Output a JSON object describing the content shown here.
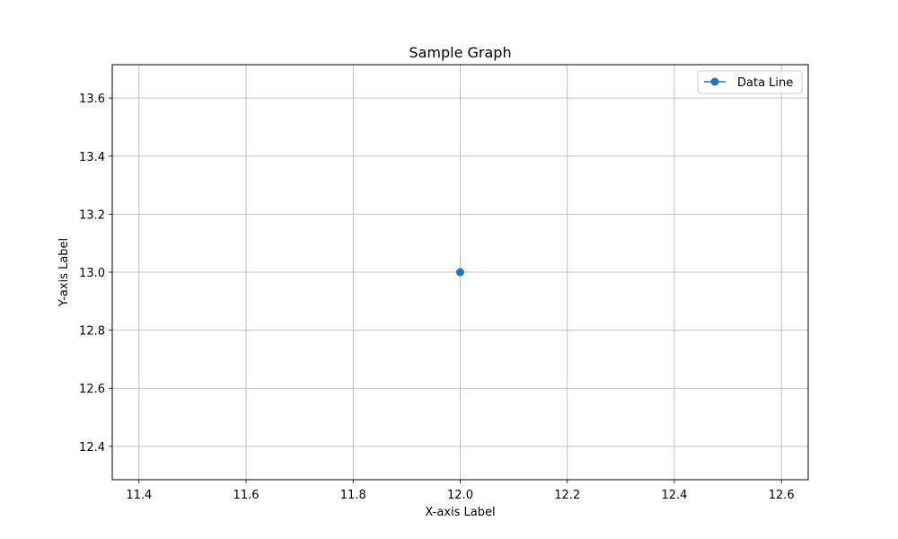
{
  "chart_data": {
    "type": "line",
    "title": "Sample Graph",
    "xlabel": "X-axis Label",
    "ylabel": "Y-axis Label",
    "xlim": [
      11.35,
      12.65
    ],
    "ylim": [
      12.285,
      13.715
    ],
    "x_ticks": [
      11.4,
      11.6,
      11.8,
      12.0,
      12.2,
      12.4,
      12.6
    ],
    "x_tick_labels": [
      "11.4",
      "11.6",
      "11.8",
      "12.0",
      "12.2",
      "12.4",
      "12.6"
    ],
    "y_ticks": [
      12.4,
      12.6,
      12.8,
      13.0,
      13.2,
      13.4,
      13.6
    ],
    "y_tick_labels": [
      "12.4",
      "12.6",
      "12.8",
      "13.0",
      "13.2",
      "13.4",
      "13.6"
    ],
    "grid": true,
    "legend_position": "top-right",
    "series": [
      {
        "name": "Data Line",
        "color": "#1f77b4",
        "marker": "circle",
        "x": [
          12.0
        ],
        "y": [
          13.0
        ]
      }
    ]
  }
}
